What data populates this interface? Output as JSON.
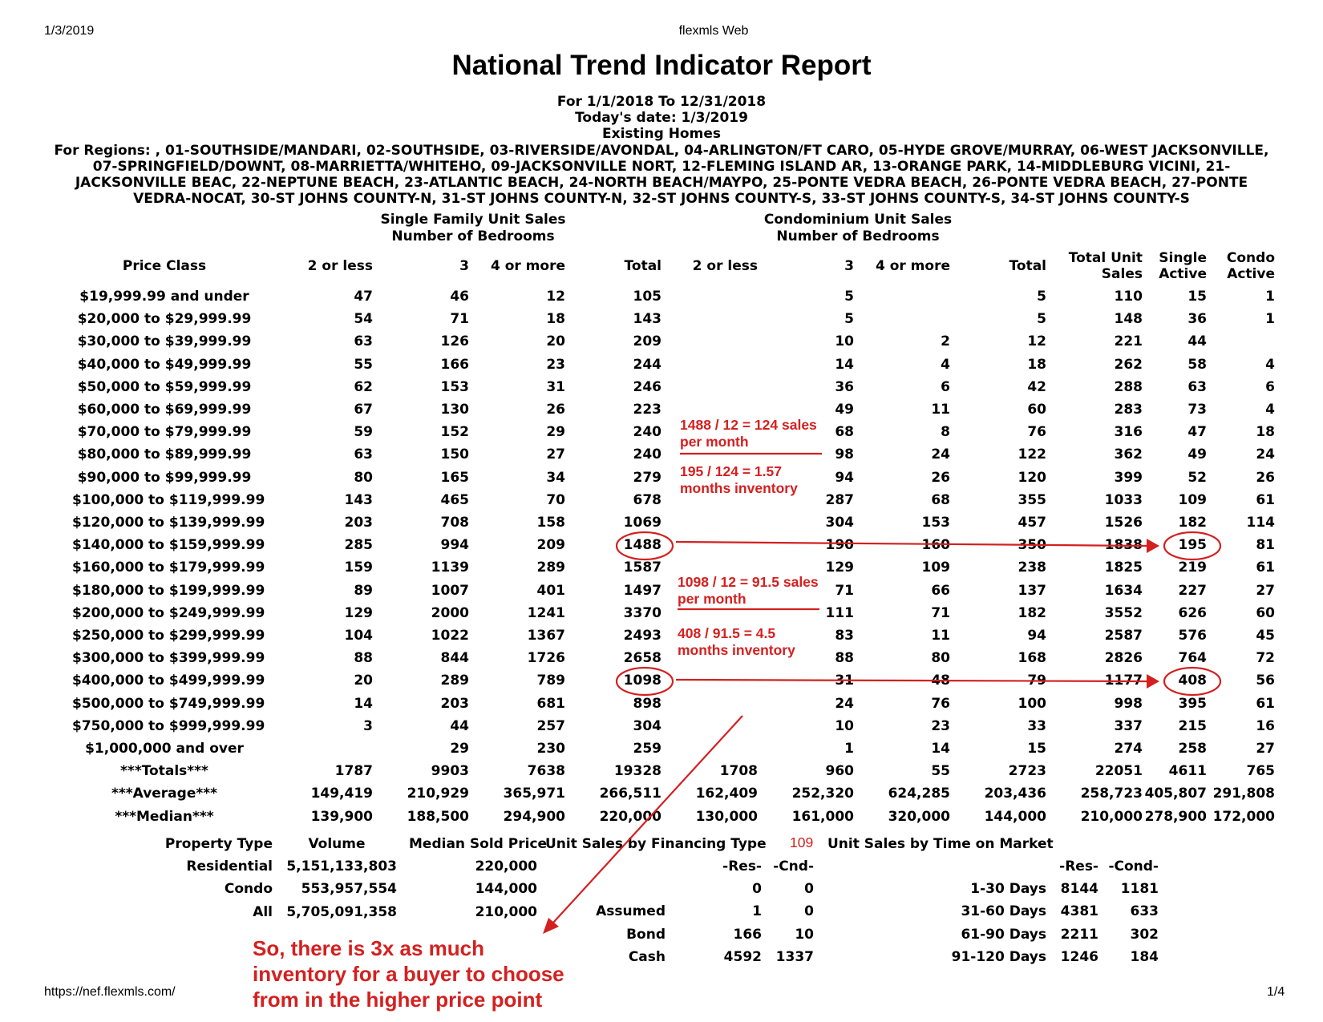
{
  "browser": {
    "date": "1/3/2019",
    "app": "flexmls Web",
    "url": "https://nef.flexmls.com/",
    "page": "1/4"
  },
  "report": {
    "title": "National Trend Indicator Report",
    "period": "For 1/1/2018 To 12/31/2018",
    "today": "Today's date: 1/3/2019",
    "home_type": "Existing Homes",
    "regions": "For Regions: , 01-SOUTHSIDE/MANDARI, 02-SOUTHSIDE, 03-RIVERSIDE/AVONDAL, 04-ARLINGTON/FT CARO, 05-HYDE GROVE/MURRAY, 06-WEST JACKSONVILLE, 07-SPRINGFIELD/DOWNT, 08-MARRIETTA/WHITEHO, 09-JACKSONVILLE NORT, 12-FLEMING ISLAND AR, 13-ORANGE PARK, 14-MIDDLEBURG VICINI, 21-JACKSONVILLE BEAC, 22-NEPTUNE BEACH, 23-ATLANTIC BEACH, 24-NORTH BEACH/MAYPO, 25-PONTE VEDRA BEACH, 26-PONTE VEDRA BEACH, 27-PONTE VEDRA-NOCAT, 30-ST JOHNS COUNTY-N, 31-ST JOHNS COUNTY-N, 32-ST JOHNS COUNTY-S, 33-ST JOHNS COUNTY-S, 34-ST JOHNS COUNTY-S"
  },
  "groups": {
    "sf_title": "Single Family Unit Sales",
    "sf_sub": "Number of Bedrooms",
    "condo_title": "Condominium Unit Sales",
    "condo_sub": "Number of Bedrooms"
  },
  "table": {
    "headers": [
      "Price Class",
      "2 or less",
      "3",
      "4 or more",
      "Total",
      "2 or less",
      "3",
      "4 or more",
      "Total",
      "Total Unit Sales",
      "Single Active",
      "Condo Active"
    ],
    "rows": [
      [
        "$19,999.99 and under",
        "47",
        "46",
        "12",
        "105",
        "",
        "5",
        "",
        "5",
        "110",
        "15",
        "1"
      ],
      [
        "$20,000 to $29,999.99",
        "54",
        "71",
        "18",
        "143",
        "",
        "5",
        "",
        "5",
        "148",
        "36",
        "1"
      ],
      [
        "$30,000 to $39,999.99",
        "63",
        "126",
        "20",
        "209",
        "",
        "10",
        "2",
        "12",
        "221",
        "44",
        ""
      ],
      [
        "$40,000 to $49,999.99",
        "55",
        "166",
        "23",
        "244",
        "",
        "14",
        "4",
        "18",
        "262",
        "58",
        "4"
      ],
      [
        "$50,000 to $59,999.99",
        "62",
        "153",
        "31",
        "246",
        "",
        "36",
        "6",
        "42",
        "288",
        "63",
        "6"
      ],
      [
        "$60,000 to $69,999.99",
        "67",
        "130",
        "26",
        "223",
        "",
        "49",
        "11",
        "60",
        "283",
        "73",
        "4"
      ],
      [
        "$70,000 to $79,999.99",
        "59",
        "152",
        "29",
        "240",
        "",
        "68",
        "8",
        "76",
        "316",
        "47",
        "18"
      ],
      [
        "$80,000 to $89,999.99",
        "63",
        "150",
        "27",
        "240",
        "",
        "98",
        "24",
        "122",
        "362",
        "49",
        "24"
      ],
      [
        "$90,000 to $99,999.99",
        "80",
        "165",
        "34",
        "279",
        "",
        "94",
        "26",
        "120",
        "399",
        "52",
        "26"
      ],
      [
        "$100,000 to $119,999.99",
        "143",
        "465",
        "70",
        "678",
        "",
        "287",
        "68",
        "355",
        "1033",
        "109",
        "61"
      ],
      [
        "$120,000 to $139,999.99",
        "203",
        "708",
        "158",
        "1069",
        "",
        "304",
        "153",
        "457",
        "1526",
        "182",
        "114"
      ],
      [
        "$140,000 to $159,999.99",
        "285",
        "994",
        "209",
        "1488",
        "",
        "190",
        "160",
        "350",
        "1838",
        "195",
        "81"
      ],
      [
        "$160,000 to $179,999.99",
        "159",
        "1139",
        "289",
        "1587",
        "",
        "129",
        "109",
        "238",
        "1825",
        "219",
        "61"
      ],
      [
        "$180,000 to $199,999.99",
        "89",
        "1007",
        "401",
        "1497",
        "",
        "71",
        "66",
        "137",
        "1634",
        "227",
        "27"
      ],
      [
        "$200,000 to $249,999.99",
        "129",
        "2000",
        "1241",
        "3370",
        "",
        "111",
        "71",
        "182",
        "3552",
        "626",
        "60"
      ],
      [
        "$250,000 to $299,999.99",
        "104",
        "1022",
        "1367",
        "2493",
        "",
        "83",
        "11",
        "94",
        "2587",
        "576",
        "45"
      ],
      [
        "$300,000 to $399,999.99",
        "88",
        "844",
        "1726",
        "2658",
        "",
        "88",
        "80",
        "168",
        "2826",
        "764",
        "72"
      ],
      [
        "$400,000 to $499,999.99",
        "20",
        "289",
        "789",
        "1098",
        "",
        "31",
        "48",
        "79",
        "1177",
        "408",
        "56"
      ],
      [
        "$500,000 to $749,999.99",
        "14",
        "203",
        "681",
        "898",
        "",
        "24",
        "76",
        "100",
        "998",
        "395",
        "61"
      ],
      [
        "$750,000 to $999,999.99",
        "3",
        "44",
        "257",
        "304",
        "",
        "10",
        "23",
        "33",
        "337",
        "215",
        "16"
      ],
      [
        "$1,000,000 and over",
        "",
        "29",
        "230",
        "259",
        "",
        "1",
        "14",
        "15",
        "274",
        "258",
        "27"
      ],
      [
        "***Totals***",
        "1787",
        "9903",
        "7638",
        "19328",
        "1708",
        "960",
        "55",
        "2723",
        "22051",
        "4611",
        "765"
      ],
      [
        "***Average***",
        "149,419",
        "210,929",
        "365,971",
        "266,511",
        "162,409",
        "252,320",
        "624,285",
        "203,436",
        "258,723",
        "405,807",
        "291,808"
      ],
      [
        "***Median***",
        "139,900",
        "188,500",
        "294,900",
        "220,000",
        "130,000",
        "161,000",
        "320,000",
        "144,000",
        "210,000",
        "278,900",
        "172,000"
      ]
    ]
  },
  "property": {
    "headers": [
      "Property Type",
      "Volume",
      "Median Sold Price"
    ],
    "rows": [
      [
        "Residential",
        "5,151,133,803",
        "220,000"
      ],
      [
        "Condo",
        "553,957,554",
        "144,000"
      ],
      [
        "All",
        "5,705,091,358",
        "210,000"
      ]
    ]
  },
  "financing": {
    "title": "Unit Sales by Financing Type",
    "extra": "109",
    "col_res": "-Res-",
    "col_cnd": "-Cnd-",
    "rows": [
      [
        "",
        "0",
        "0"
      ],
      [
        "Assumed",
        "1",
        "0"
      ],
      [
        "Bond",
        "166",
        "10"
      ],
      [
        "Cash",
        "4592",
        "1337"
      ]
    ]
  },
  "time_on_market": {
    "title": "Unit Sales by Time on Market",
    "col_res": "-Res-",
    "col_cond": "-Cond-",
    "rows": [
      [
        "1-30 Days",
        "8144",
        "1181"
      ],
      [
        "31-60 Days",
        "4381",
        "633"
      ],
      [
        "61-90 Days",
        "2211",
        "302"
      ],
      [
        "91-120 Days",
        "1246",
        "184"
      ]
    ]
  },
  "annotations": {
    "note1": "1488 / 12 = 124 sales per month",
    "note2": "195 / 124 = 1.57 months inventory",
    "note3": "1098 / 12 = 91.5 sales per month",
    "note4": "408 / 91.5 = 4.5 months inventory",
    "big_note": "So, there is 3x as much inventory for a buyer to choose from in the higher price point",
    "color": "#d42020"
  }
}
